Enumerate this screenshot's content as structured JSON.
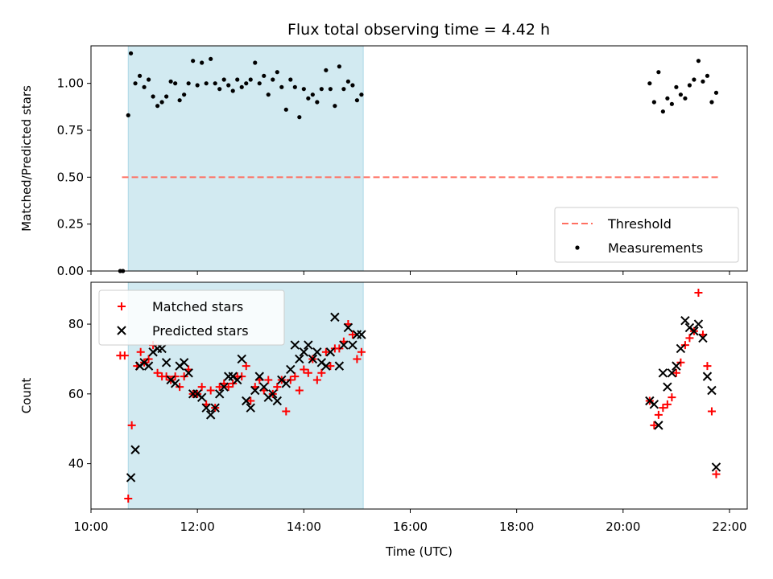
{
  "title": "Flux total observing time = 4.42 h",
  "colors": {
    "shade": "#add8e6",
    "threshold": "#ff6f61",
    "measurement": "#000000",
    "matched": "#ff0000",
    "predicted": "#000000"
  },
  "chart_data": [
    {
      "type": "scatter",
      "panel": "top",
      "ylabel": "Matched/Predicted stars",
      "ylim": [
        0.0,
        1.2
      ],
      "yticks": [
        0.0,
        0.25,
        0.5,
        0.75,
        1.0
      ],
      "ytick_labels": [
        "0.00",
        "0.25",
        "0.50",
        "0.75",
        "1.00"
      ],
      "xlim": [
        "10:00",
        "22:20"
      ],
      "grid": false,
      "legend_position": "lower right",
      "shaded_span": [
        "10:42",
        "15:07"
      ],
      "series": [
        {
          "name": "Threshold",
          "kind": "dashed-line",
          "x": [
            "10:35",
            "21:50"
          ],
          "y": [
            0.5,
            0.5
          ]
        },
        {
          "name": "Measurements",
          "kind": "dots",
          "x": [
            "10:33",
            "10:36",
            "10:42",
            "10:45",
            "10:50",
            "10:55",
            "11:00",
            "11:05",
            "11:10",
            "11:15",
            "11:20",
            "11:25",
            "11:30",
            "11:35",
            "11:40",
            "11:45",
            "11:50",
            "11:55",
            "12:00",
            "12:05",
            "12:10",
            "12:15",
            "12:20",
            "12:25",
            "12:30",
            "12:35",
            "12:40",
            "12:45",
            "12:50",
            "12:55",
            "13:00",
            "13:05",
            "13:10",
            "13:15",
            "13:20",
            "13:25",
            "13:30",
            "13:35",
            "13:40",
            "13:45",
            "13:50",
            "13:55",
            "14:00",
            "14:05",
            "14:10",
            "14:15",
            "14:20",
            "14:25",
            "14:30",
            "14:35",
            "14:40",
            "14:45",
            "14:50",
            "14:55",
            "15:00",
            "15:05",
            "20:30",
            "20:35",
            "20:40",
            "20:45",
            "20:50",
            "20:55",
            "21:00",
            "21:05",
            "21:10",
            "21:15",
            "21:20",
            "21:25",
            "21:30",
            "21:35",
            "21:40",
            "21:45"
          ],
          "y": [
            0.0,
            0.0,
            0.83,
            1.16,
            1.0,
            1.04,
            0.98,
            1.02,
            0.93,
            0.88,
            0.9,
            0.93,
            1.01,
            1.0,
            0.91,
            0.94,
            1.0,
            1.12,
            0.99,
            1.11,
            1.0,
            1.13,
            1.0,
            0.97,
            1.02,
            0.99,
            0.96,
            1.02,
            0.98,
            1.0,
            1.02,
            1.11,
            1.0,
            1.04,
            0.94,
            1.02,
            1.06,
            0.98,
            0.86,
            1.02,
            0.98,
            0.82,
            0.97,
            0.92,
            0.94,
            0.9,
            0.97,
            1.07,
            0.97,
            0.88,
            1.09,
            0.97,
            1.01,
            0.99,
            0.91,
            0.94,
            1.0,
            0.9,
            1.06,
            0.85,
            0.92,
            0.89,
            0.98,
            0.94,
            0.92,
            0.99,
            1.02,
            1.12,
            1.01,
            1.04,
            0.9,
            0.95
          ]
        }
      ]
    },
    {
      "type": "scatter",
      "panel": "bottom",
      "xlabel": "Time (UTC)",
      "ylabel": "Count",
      "ylim": [
        27,
        92
      ],
      "yticks": [
        40,
        60,
        80
      ],
      "ytick_labels": [
        "40",
        "60",
        "80"
      ],
      "xlim": [
        "10:00",
        "22:20"
      ],
      "xticks": [
        "10:00",
        "12:00",
        "14:00",
        "16:00",
        "18:00",
        "20:00",
        "22:00"
      ],
      "grid": false,
      "legend_position": "upper left",
      "shaded_span": [
        "10:42",
        "15:07"
      ],
      "series": [
        {
          "name": "Matched stars",
          "marker": "plus",
          "x": [
            "10:33",
            "10:38",
            "10:42",
            "10:46",
            "10:52",
            "10:56",
            "11:00",
            "11:05",
            "11:10",
            "11:15",
            "11:20",
            "11:25",
            "11:30",
            "11:35",
            "11:40",
            "11:45",
            "11:50",
            "11:55",
            "12:00",
            "12:05",
            "12:10",
            "12:15",
            "12:20",
            "12:25",
            "12:30",
            "12:35",
            "12:40",
            "12:45",
            "12:50",
            "12:55",
            "13:00",
            "13:05",
            "13:10",
            "13:15",
            "13:20",
            "13:25",
            "13:30",
            "13:35",
            "13:40",
            "13:45",
            "13:50",
            "13:55",
            "14:00",
            "14:05",
            "14:10",
            "14:15",
            "14:20",
            "14:25",
            "14:30",
            "14:35",
            "14:40",
            "14:45",
            "14:50",
            "14:55",
            "15:00",
            "15:05",
            "20:30",
            "20:35",
            "20:40",
            "20:45",
            "20:50",
            "20:55",
            "21:00",
            "21:05",
            "21:10",
            "21:15",
            "21:20",
            "21:25",
            "21:30",
            "21:35",
            "21:40",
            "21:45"
          ],
          "y": [
            71,
            71,
            30,
            51,
            68,
            72,
            69,
            70,
            74,
            66,
            65,
            65,
            64,
            65,
            62,
            65,
            67,
            60,
            60,
            62,
            57,
            61,
            56,
            62,
            63,
            62,
            63,
            65,
            65,
            68,
            58,
            62,
            64,
            61,
            64,
            60,
            62,
            64,
            55,
            64,
            65,
            61,
            67,
            66,
            70,
            64,
            66,
            72,
            68,
            73,
            73,
            75,
            80,
            77,
            70,
            72,
            58,
            51,
            54,
            56,
            57,
            59,
            66,
            69,
            74,
            76,
            78,
            89,
            77,
            68,
            55,
            37
          ]
        },
        {
          "name": "Predicted stars",
          "marker": "x",
          "x": [
            "10:45",
            "10:50",
            "10:55",
            "11:00",
            "11:05",
            "11:10",
            "11:15",
            "11:20",
            "11:25",
            "11:30",
            "11:35",
            "11:40",
            "11:45",
            "11:50",
            "11:55",
            "12:00",
            "12:05",
            "12:10",
            "12:15",
            "12:20",
            "12:25",
            "12:30",
            "12:35",
            "12:40",
            "12:45",
            "12:50",
            "12:55",
            "13:00",
            "13:05",
            "13:10",
            "13:15",
            "13:20",
            "13:25",
            "13:30",
            "13:35",
            "13:40",
            "13:45",
            "13:50",
            "13:55",
            "14:00",
            "14:05",
            "14:10",
            "14:15",
            "14:20",
            "14:25",
            "14:30",
            "14:35",
            "14:40",
            "14:45",
            "14:50",
            "14:55",
            "15:00",
            "15:05",
            "20:30",
            "20:35",
            "20:40",
            "20:45",
            "20:50",
            "20:55",
            "21:00",
            "21:05",
            "21:10",
            "21:15",
            "21:20",
            "21:25",
            "21:30",
            "21:35",
            "21:40",
            "21:45"
          ],
          "y": [
            36,
            44,
            68,
            69,
            68,
            72,
            73,
            73,
            69,
            64,
            63,
            68,
            69,
            66,
            60,
            60,
            59,
            56,
            54,
            56,
            60,
            62,
            65,
            65,
            64,
            70,
            58,
            56,
            61,
            65,
            62,
            59,
            60,
            58,
            64,
            63,
            67,
            74,
            70,
            72,
            74,
            70,
            72,
            69,
            68,
            72,
            82,
            68,
            74,
            79,
            74,
            77,
            77,
            58,
            57,
            51,
            66,
            62,
            66,
            68,
            73,
            81,
            79,
            78,
            80,
            76,
            65,
            61,
            39
          ]
        }
      ]
    }
  ]
}
